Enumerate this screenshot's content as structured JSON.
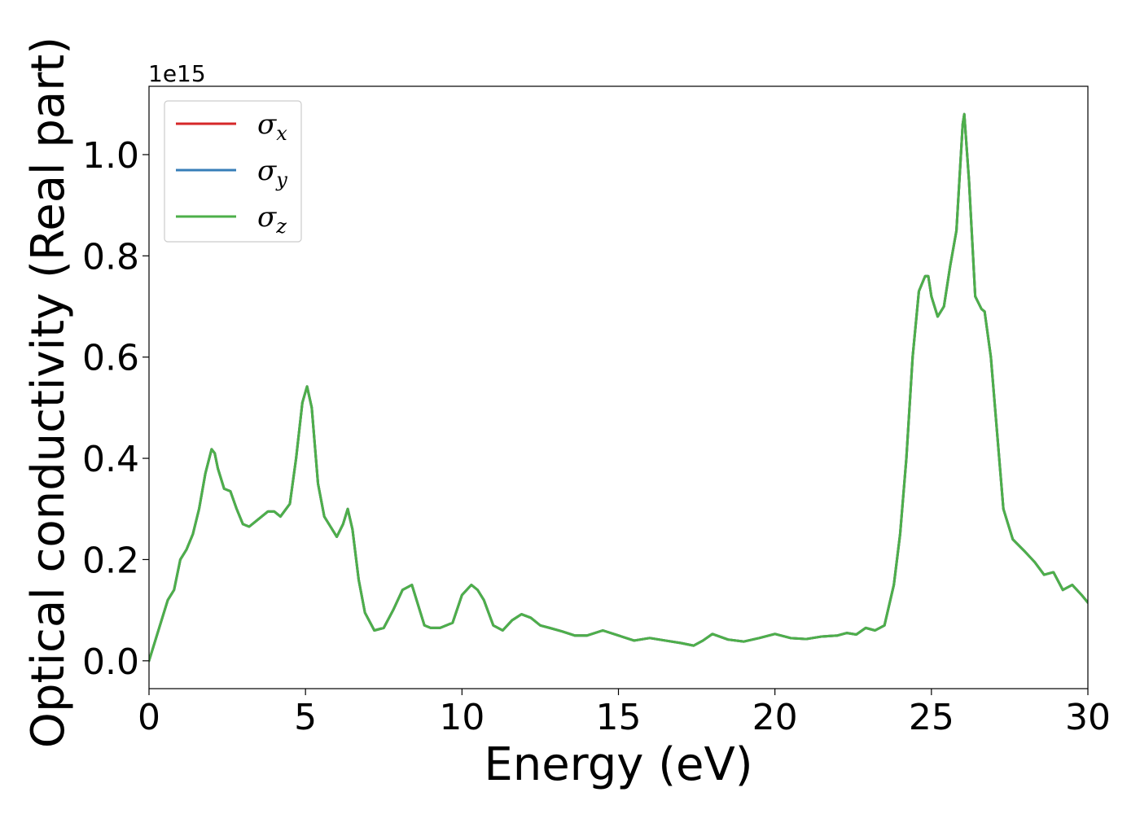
{
  "chart_data": {
    "type": "line",
    "xlabel": "Energy (eV)",
    "ylabel": "Optical conductivity (Real part)",
    "y_offset_text": "1e15",
    "xlim": [
      0,
      30
    ],
    "ylim": [
      -0.055,
      1.135
    ],
    "x_ticks": [
      0,
      5,
      10,
      15,
      20,
      25,
      30
    ],
    "x_tick_labels": [
      "0",
      "5",
      "10",
      "15",
      "20",
      "25",
      "30"
    ],
    "y_ticks": [
      0.0,
      0.2,
      0.4,
      0.6,
      0.8,
      1.0
    ],
    "y_tick_labels": [
      "0.0",
      "0.2",
      "0.4",
      "0.6",
      "0.8",
      "1.0"
    ],
    "grid": false,
    "legend_position": "top-left",
    "series": [
      {
        "name": "σx",
        "symbol": "σ",
        "subscript": "x",
        "color": "#d62728",
        "x": [
          0,
          0.2,
          0.4,
          0.6,
          0.8,
          1.0,
          1.2,
          1.4,
          1.6,
          1.8,
          2.0,
          2.1,
          2.2,
          2.4,
          2.6,
          2.8,
          3.0,
          3.2,
          3.5,
          3.8,
          4.0,
          4.2,
          4.5,
          4.7,
          4.9,
          5.05,
          5.2,
          5.4,
          5.6,
          5.8,
          6.0,
          6.2,
          6.35,
          6.5,
          6.7,
          6.9,
          7.2,
          7.5,
          7.8,
          8.1,
          8.4,
          8.6,
          8.8,
          9.0,
          9.3,
          9.7,
          10.0,
          10.3,
          10.5,
          10.7,
          11.0,
          11.3,
          11.6,
          11.9,
          12.2,
          12.5,
          12.8,
          13.2,
          13.6,
          14.0,
          14.5,
          15.0,
          15.5,
          16.0,
          16.5,
          17.0,
          17.4,
          17.7,
          18.0,
          18.5,
          19.0,
          19.5,
          20.0,
          20.5,
          21.0,
          21.5,
          22.0,
          22.3,
          22.6,
          22.9,
          23.2,
          23.5,
          23.8,
          24.0,
          24.2,
          24.4,
          24.6,
          24.8,
          24.9,
          25.0,
          25.2,
          25.4,
          25.6,
          25.8,
          26.0,
          26.05,
          26.2,
          26.4,
          26.6,
          26.7,
          26.9,
          27.1,
          27.3,
          27.6,
          28.0,
          28.3,
          28.6,
          28.9,
          29.2,
          29.5,
          29.8,
          30.0
        ],
        "values": [
          0.0,
          0.04,
          0.08,
          0.12,
          0.14,
          0.2,
          0.22,
          0.25,
          0.3,
          0.37,
          0.418,
          0.41,
          0.38,
          0.34,
          0.335,
          0.3,
          0.27,
          0.265,
          0.28,
          0.295,
          0.295,
          0.285,
          0.31,
          0.4,
          0.51,
          0.542,
          0.5,
          0.35,
          0.285,
          0.265,
          0.245,
          0.27,
          0.3,
          0.26,
          0.16,
          0.095,
          0.06,
          0.065,
          0.1,
          0.14,
          0.15,
          0.11,
          0.07,
          0.065,
          0.065,
          0.075,
          0.13,
          0.15,
          0.14,
          0.12,
          0.07,
          0.06,
          0.08,
          0.092,
          0.085,
          0.07,
          0.065,
          0.058,
          0.05,
          0.05,
          0.06,
          0.05,
          0.04,
          0.045,
          0.04,
          0.035,
          0.03,
          0.04,
          0.053,
          0.042,
          0.038,
          0.045,
          0.053,
          0.045,
          0.043,
          0.048,
          0.05,
          0.055,
          0.052,
          0.065,
          0.06,
          0.07,
          0.15,
          0.25,
          0.4,
          0.6,
          0.73,
          0.76,
          0.76,
          0.72,
          0.68,
          0.7,
          0.78,
          0.85,
          1.06,
          1.08,
          0.95,
          0.72,
          0.695,
          0.69,
          0.6,
          0.45,
          0.3,
          0.24,
          0.215,
          0.195,
          0.17,
          0.175,
          0.14,
          0.15,
          0.13,
          0.115
        ]
      },
      {
        "name": "σy",
        "symbol": "σ",
        "subscript": "y",
        "color": "#377eb8",
        "x": [
          0,
          0.2,
          0.4,
          0.6,
          0.8,
          1.0,
          1.2,
          1.4,
          1.6,
          1.8,
          2.0,
          2.1,
          2.2,
          2.4,
          2.6,
          2.8,
          3.0,
          3.2,
          3.5,
          3.8,
          4.0,
          4.2,
          4.5,
          4.7,
          4.9,
          5.05,
          5.2,
          5.4,
          5.6,
          5.8,
          6.0,
          6.2,
          6.35,
          6.5,
          6.7,
          6.9,
          7.2,
          7.5,
          7.8,
          8.1,
          8.4,
          8.6,
          8.8,
          9.0,
          9.3,
          9.7,
          10.0,
          10.3,
          10.5,
          10.7,
          11.0,
          11.3,
          11.6,
          11.9,
          12.2,
          12.5,
          12.8,
          13.2,
          13.6,
          14.0,
          14.5,
          15.0,
          15.5,
          16.0,
          16.5,
          17.0,
          17.4,
          17.7,
          18.0,
          18.5,
          19.0,
          19.5,
          20.0,
          20.5,
          21.0,
          21.5,
          22.0,
          22.3,
          22.6,
          22.9,
          23.2,
          23.5,
          23.8,
          24.0,
          24.2,
          24.4,
          24.6,
          24.8,
          24.9,
          25.0,
          25.2,
          25.4,
          25.6,
          25.8,
          26.0,
          26.05,
          26.2,
          26.4,
          26.6,
          26.7,
          26.9,
          27.1,
          27.3,
          27.6,
          28.0,
          28.3,
          28.6,
          28.9,
          29.2,
          29.5,
          29.8,
          30.0
        ],
        "values": [
          0.0,
          0.04,
          0.08,
          0.12,
          0.14,
          0.2,
          0.22,
          0.25,
          0.3,
          0.37,
          0.418,
          0.41,
          0.38,
          0.34,
          0.335,
          0.3,
          0.27,
          0.265,
          0.28,
          0.295,
          0.295,
          0.285,
          0.31,
          0.4,
          0.51,
          0.542,
          0.5,
          0.35,
          0.285,
          0.265,
          0.245,
          0.27,
          0.3,
          0.26,
          0.16,
          0.095,
          0.06,
          0.065,
          0.1,
          0.14,
          0.15,
          0.11,
          0.07,
          0.065,
          0.065,
          0.075,
          0.13,
          0.15,
          0.14,
          0.12,
          0.07,
          0.06,
          0.08,
          0.092,
          0.085,
          0.07,
          0.065,
          0.058,
          0.05,
          0.05,
          0.06,
          0.05,
          0.04,
          0.045,
          0.04,
          0.035,
          0.03,
          0.04,
          0.053,
          0.042,
          0.038,
          0.045,
          0.053,
          0.045,
          0.043,
          0.048,
          0.05,
          0.055,
          0.052,
          0.065,
          0.06,
          0.07,
          0.15,
          0.25,
          0.4,
          0.6,
          0.73,
          0.76,
          0.76,
          0.72,
          0.68,
          0.7,
          0.78,
          0.85,
          1.06,
          1.08,
          0.95,
          0.72,
          0.695,
          0.69,
          0.6,
          0.45,
          0.3,
          0.24,
          0.215,
          0.195,
          0.17,
          0.175,
          0.14,
          0.15,
          0.13,
          0.115
        ]
      },
      {
        "name": "σz",
        "symbol": "σ",
        "subscript": "z",
        "color": "#4daf4a",
        "x": [
          0,
          0.2,
          0.4,
          0.6,
          0.8,
          1.0,
          1.2,
          1.4,
          1.6,
          1.8,
          2.0,
          2.1,
          2.2,
          2.4,
          2.6,
          2.8,
          3.0,
          3.2,
          3.5,
          3.8,
          4.0,
          4.2,
          4.5,
          4.7,
          4.9,
          5.05,
          5.2,
          5.4,
          5.6,
          5.8,
          6.0,
          6.2,
          6.35,
          6.5,
          6.7,
          6.9,
          7.2,
          7.5,
          7.8,
          8.1,
          8.4,
          8.6,
          8.8,
          9.0,
          9.3,
          9.7,
          10.0,
          10.3,
          10.5,
          10.7,
          11.0,
          11.3,
          11.6,
          11.9,
          12.2,
          12.5,
          12.8,
          13.2,
          13.6,
          14.0,
          14.5,
          15.0,
          15.5,
          16.0,
          16.5,
          17.0,
          17.4,
          17.7,
          18.0,
          18.5,
          19.0,
          19.5,
          20.0,
          20.5,
          21.0,
          21.5,
          22.0,
          22.3,
          22.6,
          22.9,
          23.2,
          23.5,
          23.8,
          24.0,
          24.2,
          24.4,
          24.6,
          24.8,
          24.9,
          25.0,
          25.2,
          25.4,
          25.6,
          25.8,
          26.0,
          26.05,
          26.2,
          26.4,
          26.6,
          26.7,
          26.9,
          27.1,
          27.3,
          27.6,
          28.0,
          28.3,
          28.6,
          28.9,
          29.2,
          29.5,
          29.8,
          30.0
        ],
        "values": [
          0.0,
          0.04,
          0.08,
          0.12,
          0.14,
          0.2,
          0.22,
          0.25,
          0.3,
          0.37,
          0.418,
          0.41,
          0.38,
          0.34,
          0.335,
          0.3,
          0.27,
          0.265,
          0.28,
          0.295,
          0.295,
          0.285,
          0.31,
          0.4,
          0.51,
          0.542,
          0.5,
          0.35,
          0.285,
          0.265,
          0.245,
          0.27,
          0.3,
          0.26,
          0.16,
          0.095,
          0.06,
          0.065,
          0.1,
          0.14,
          0.15,
          0.11,
          0.07,
          0.065,
          0.065,
          0.075,
          0.13,
          0.15,
          0.14,
          0.12,
          0.07,
          0.06,
          0.08,
          0.092,
          0.085,
          0.07,
          0.065,
          0.058,
          0.05,
          0.05,
          0.06,
          0.05,
          0.04,
          0.045,
          0.04,
          0.035,
          0.03,
          0.04,
          0.053,
          0.042,
          0.038,
          0.045,
          0.053,
          0.045,
          0.043,
          0.048,
          0.05,
          0.055,
          0.052,
          0.065,
          0.06,
          0.07,
          0.15,
          0.25,
          0.4,
          0.6,
          0.73,
          0.76,
          0.76,
          0.72,
          0.68,
          0.7,
          0.78,
          0.85,
          1.06,
          1.08,
          0.95,
          0.72,
          0.695,
          0.69,
          0.6,
          0.45,
          0.3,
          0.24,
          0.215,
          0.195,
          0.17,
          0.175,
          0.14,
          0.15,
          0.13,
          0.115
        ]
      }
    ]
  }
}
